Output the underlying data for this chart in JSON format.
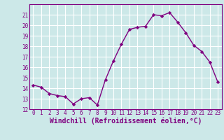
{
  "x": [
    0,
    1,
    2,
    3,
    4,
    5,
    6,
    7,
    8,
    9,
    10,
    11,
    12,
    13,
    14,
    15,
    16,
    17,
    18,
    19,
    20,
    21,
    22,
    23
  ],
  "y": [
    14.3,
    14.1,
    13.5,
    13.3,
    13.2,
    12.5,
    13.0,
    13.1,
    12.4,
    14.8,
    16.6,
    18.2,
    19.6,
    19.8,
    19.9,
    21.0,
    20.9,
    21.2,
    20.3,
    19.3,
    18.1,
    17.5,
    16.5,
    14.6
  ],
  "line_color": "#800080",
  "marker": "D",
  "marker_size": 2.2,
  "line_width": 1.0,
  "bg_color": "#cce8e8",
  "grid_color": "#b0d0d0",
  "xlabel": "Windchill (Refroidissement éolien,°C)",
  "tick_color": "#800080",
  "ylim": [
    12,
    22
  ],
  "xlim": [
    -0.5,
    23.5
  ],
  "yticks": [
    12,
    13,
    14,
    15,
    16,
    17,
    18,
    19,
    20,
    21
  ],
  "xticks": [
    0,
    1,
    2,
    3,
    4,
    5,
    6,
    7,
    8,
    9,
    10,
    11,
    12,
    13,
    14,
    15,
    16,
    17,
    18,
    19,
    20,
    21,
    22,
    23
  ],
  "tick_fontsize": 5.5,
  "xlabel_fontsize": 7.0
}
